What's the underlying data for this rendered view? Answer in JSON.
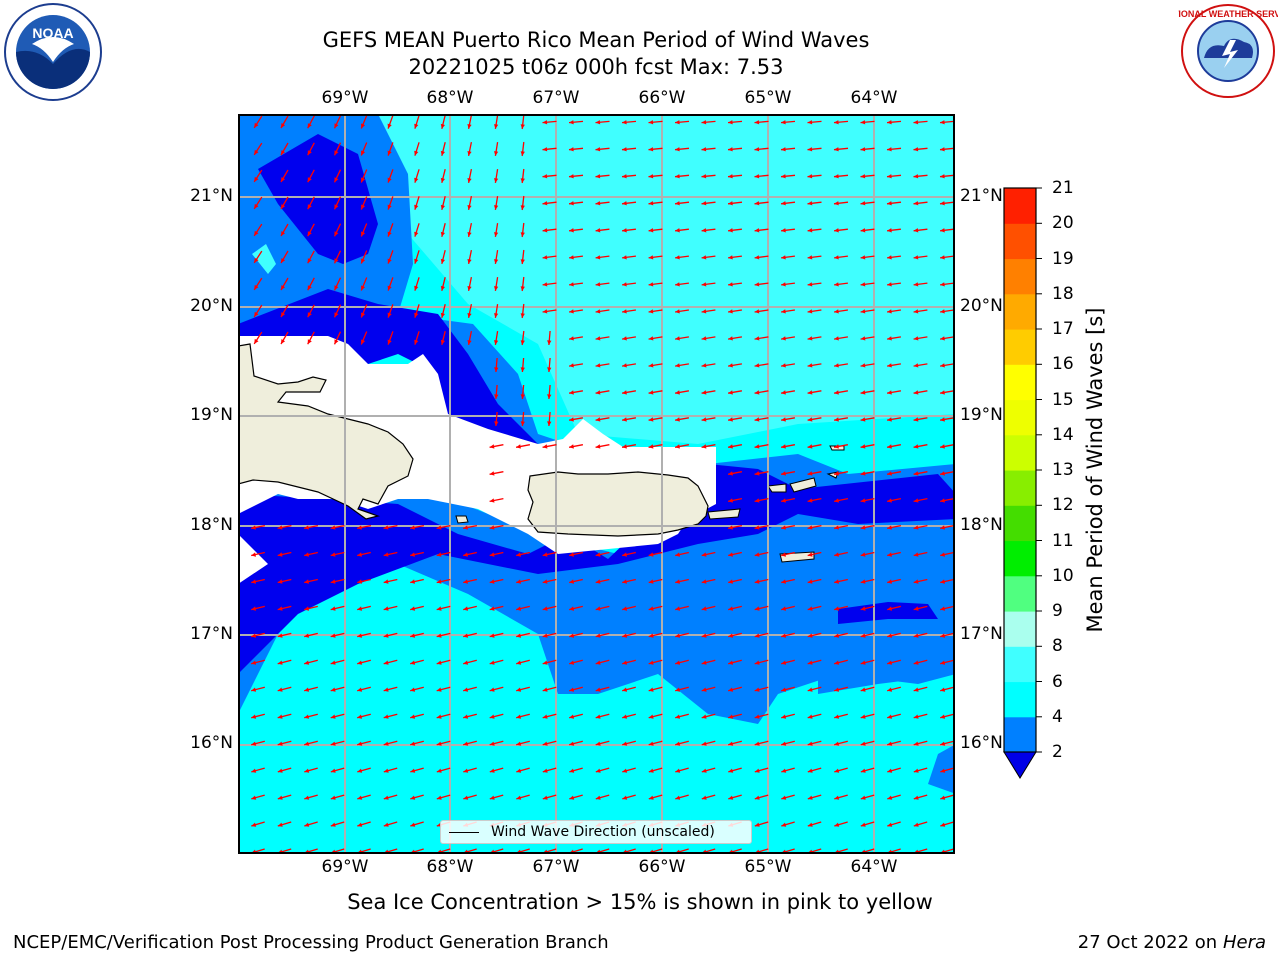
{
  "header": {
    "title_line1": "GEFS MEAN Puerto Rico Mean Period of Wind Waves",
    "title_line2": "20221025 t06z 000h fcst   Max: 7.53"
  },
  "map": {
    "lon_ticks": [
      "69°W",
      "68°W",
      "67°W",
      "66°W",
      "65°W",
      "64°W"
    ],
    "lat_ticks": [
      "21°N",
      "20°N",
      "19°N",
      "18°N",
      "17°N",
      "16°N"
    ],
    "legend_label": "Wind Wave Direction (unscaled)",
    "land_color": "#efeedc",
    "grid_color": "#b0b0b0",
    "arrow_color": "#ff0000"
  },
  "colorbar": {
    "title": "Mean Period of Wind Waves [s]",
    "labels": [
      "2",
      "4",
      "6",
      "8",
      "9",
      "10",
      "11",
      "12",
      "13",
      "14",
      "15",
      "16",
      "17",
      "18",
      "19",
      "20",
      "21"
    ],
    "colors": [
      "#0000ff",
      "#0080ff",
      "#00ffff",
      "#40ffff",
      "#aaffee",
      "#50ff80",
      "#00ee00",
      "#44dd00",
      "#88ee00",
      "#ccff00",
      "#eeff00",
      "#ffff00",
      "#ffcc00",
      "#ffaa00",
      "#ff8000",
      "#ff5000",
      "#ff2000",
      "#ff0000"
    ],
    "under_color": "#0000e6"
  },
  "notes": {
    "ice_note": "Sea Ice Concentration > 15% is shown in pink to yellow"
  },
  "footer": {
    "left": "NCEP/EMC/Verification Post Processing Product Generation Branch",
    "right_prefix": "27 Oct 2022 on",
    "right_host": "Hera"
  },
  "logos": {
    "noaa_text": "NOAA",
    "nws_text": "NATIONAL WEATHER SERVICE"
  }
}
